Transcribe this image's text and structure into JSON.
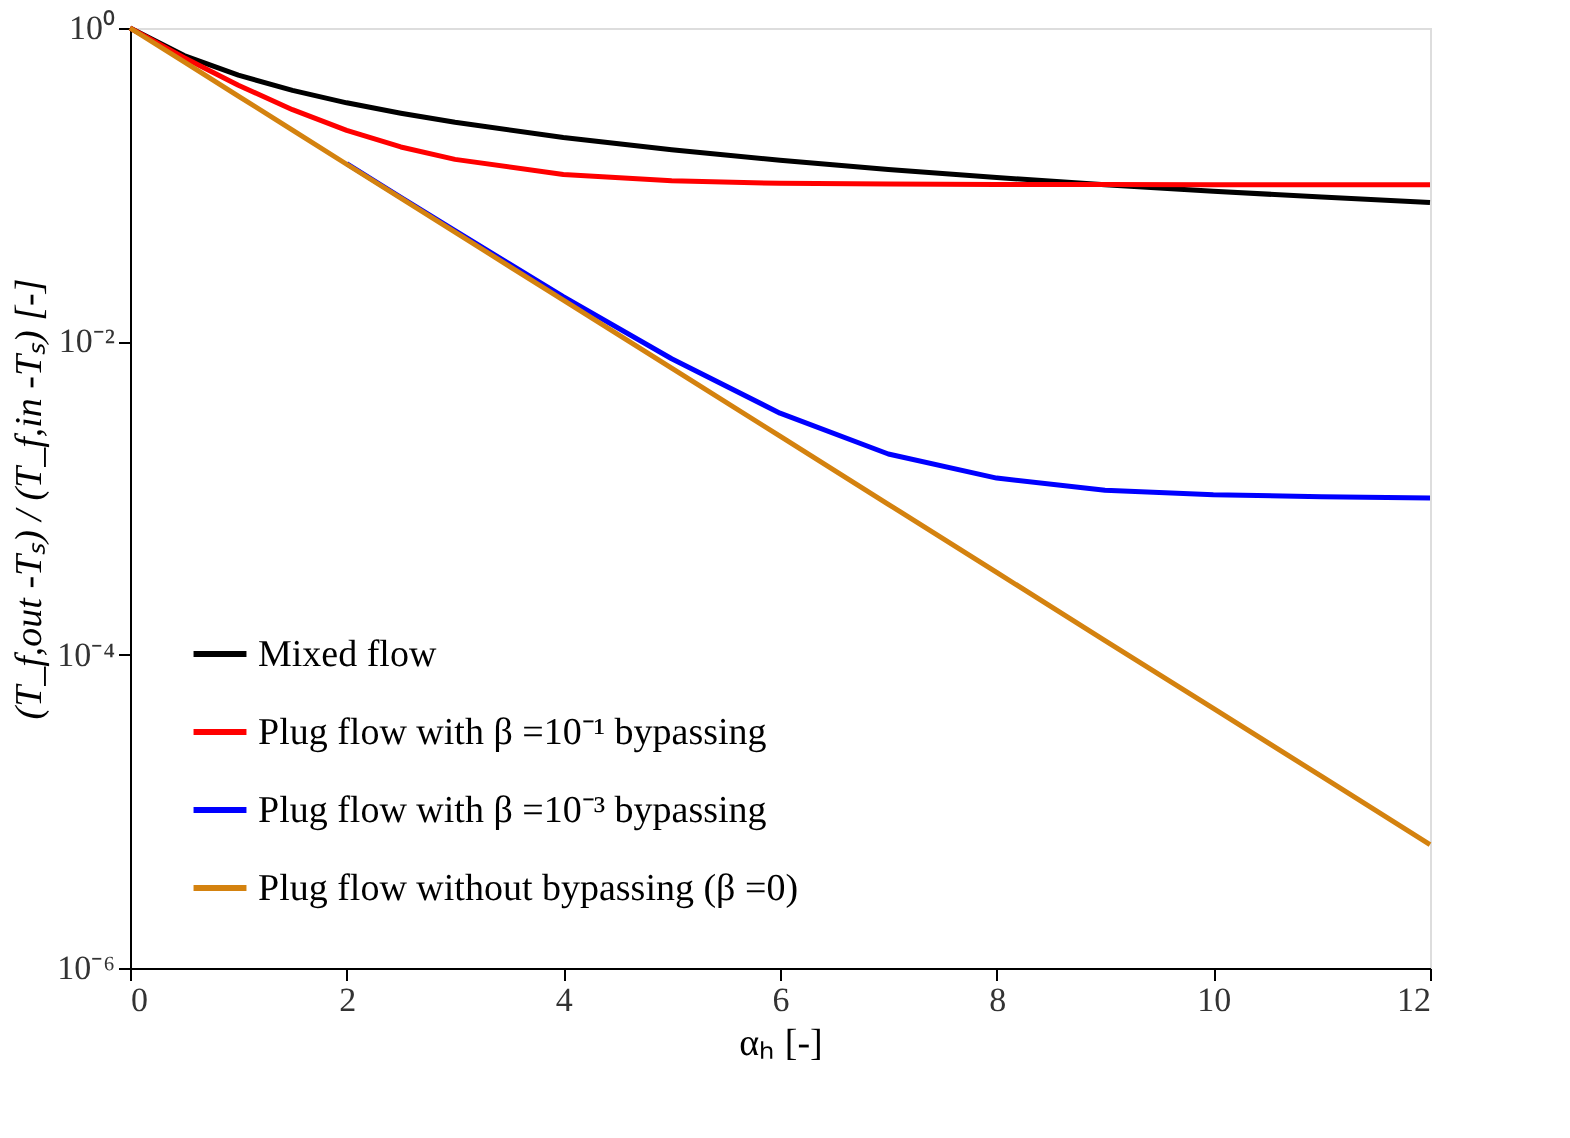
{
  "chart_data": {
    "type": "line",
    "xlabel": "αₕ [-]",
    "ylabel": "(T_f,out -Tₛ) / (T_f,in -Tₛ) [-]",
    "x": [
      0,
      0.5,
      1,
      1.5,
      2,
      2.5,
      3,
      4,
      5,
      6,
      7,
      8,
      9,
      10,
      11,
      12
    ],
    "series": [
      {
        "name": "Mixed flow",
        "color": "#000000",
        "values": [
          1,
          0.667,
          0.5,
          0.4,
          0.333,
          0.286,
          0.25,
          0.2,
          0.167,
          0.143,
          0.125,
          0.111,
          0.1,
          0.0909,
          0.0833,
          0.0769
        ]
      },
      {
        "name": "Plug flow with β =10⁻¹ bypassing",
        "color": "#ff0000",
        "values": [
          1,
          0.646,
          0.431,
          0.301,
          0.222,
          0.174,
          0.145,
          0.116,
          0.106,
          0.102,
          0.1008,
          0.1003,
          0.1001,
          0.1,
          0.1,
          0.1
        ]
      },
      {
        "name": "Plug flow with β =10⁻³ bypassing",
        "color": "#0000ff",
        "values": [
          null,
          null,
          null,
          null,
          0.136,
          0.0831,
          0.0508,
          0.0193,
          0.00774,
          0.00348,
          0.00191,
          0.00134,
          0.00112,
          0.00105,
          0.00102,
          0.001
        ]
      },
      {
        "name": "Plug flow without bypassing (β =0)",
        "color": "#d4820f",
        "values": [
          1,
          0.607,
          0.368,
          0.223,
          0.135,
          0.0821,
          0.0498,
          0.0183,
          0.00674,
          0.00248,
          0.000912,
          0.000335,
          0.000123,
          4.54e-05,
          1.67e-05,
          6.14e-06
        ]
      }
    ],
    "log": "y",
    "xlim": [
      0,
      12
    ],
    "xticks": [
      0,
      2,
      4,
      6,
      8,
      10,
      12
    ],
    "ylim": [
      1e-06,
      1
    ],
    "yticks": [
      {
        "value": 1,
        "label": "10⁰"
      },
      {
        "value": 0.01,
        "label": "10⁻²"
      },
      {
        "value": 0.0001,
        "label": "10⁻⁴"
      },
      {
        "value": 1e-06,
        "label": "10⁻⁶"
      }
    ],
    "grid": false,
    "legend": "bottom left",
    "line_style": "solid",
    "marker": "none"
  }
}
